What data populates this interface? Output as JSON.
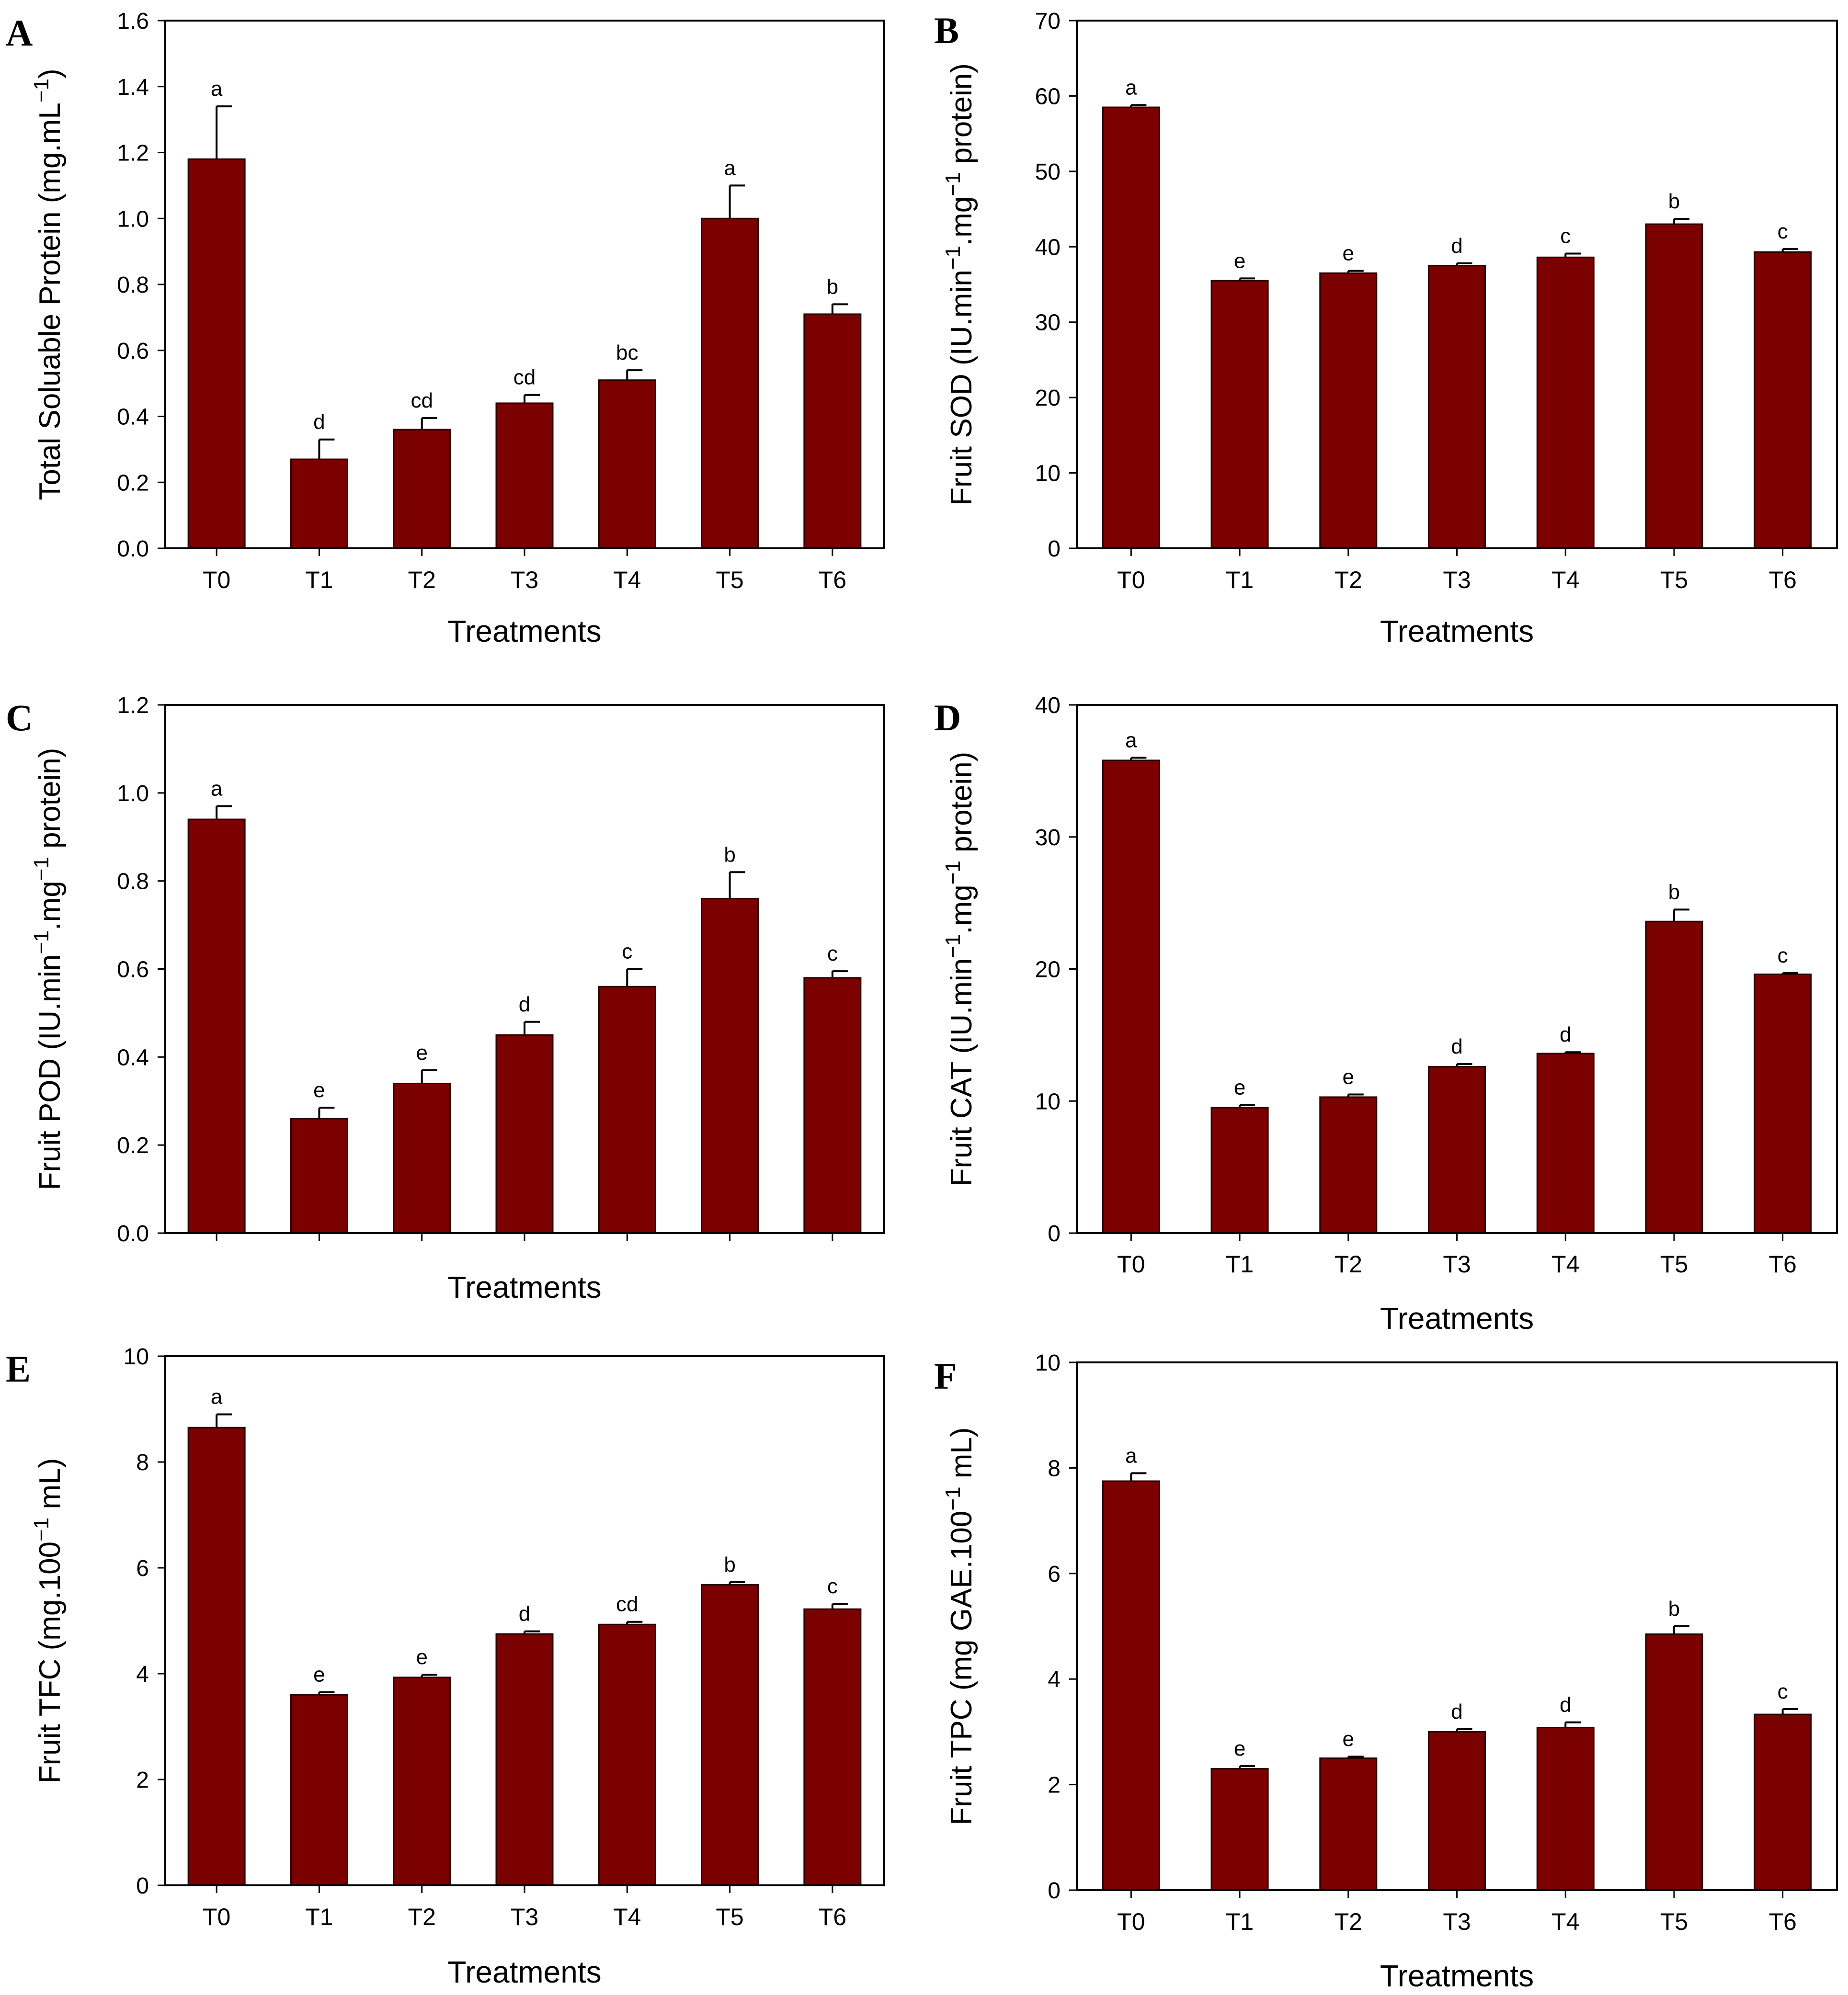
{
  "figure": {
    "colors": {
      "bar": "#7B0000",
      "bar_edge": "#2a0000",
      "axis": "#000000",
      "background": "#ffffff"
    }
  },
  "chart_data": [
    {
      "panel": "A",
      "type": "bar",
      "title": "",
      "xlabel": "Treatments",
      "ylabel": "Total Soluable Protein (mg.mL",
      "ylabel_sup": "−1",
      "ylabel_end": ")",
      "ylim": [
        0,
        1.6
      ],
      "yticks": [
        "0.0",
        "0.2",
        "0.4",
        "0.6",
        "0.8",
        "1.0",
        "1.2",
        "1.4",
        "1.6"
      ],
      "categories": [
        "T0",
        "T1",
        "T2",
        "T3",
        "T4",
        "T5",
        "T6"
      ],
      "values": [
        1.18,
        0.27,
        0.36,
        0.44,
        0.51,
        1.0,
        0.71
      ],
      "errors": [
        0.16,
        0.06,
        0.035,
        0.025,
        0.03,
        0.1,
        0.03
      ],
      "letters": [
        "a",
        "d",
        "cd",
        "cd",
        "bc",
        "a",
        "b"
      ]
    },
    {
      "panel": "B",
      "type": "bar",
      "title": "",
      "xlabel": "Treatments",
      "ylabel": "Fruit SOD (IU.min",
      "ylabel_sup": "−1",
      "ylabel_mid": ".mg",
      "ylabel_sup2": "−1",
      "ylabel_end": " protein)",
      "ylim": [
        0,
        70
      ],
      "yticks": [
        "0",
        "10",
        "20",
        "30",
        "40",
        "50",
        "60",
        "70"
      ],
      "categories": [
        "T0",
        "T1",
        "T2",
        "T3",
        "T4",
        "T5",
        "T6"
      ],
      "values": [
        58.5,
        35.5,
        36.5,
        37.5,
        38.6,
        43.0,
        39.3
      ],
      "errors": [
        0.3,
        0.3,
        0.3,
        0.3,
        0.5,
        0.7,
        0.4
      ],
      "letters": [
        "a",
        "e",
        "e",
        "d",
        "c",
        "b",
        "c"
      ]
    },
    {
      "panel": "C",
      "type": "bar",
      "title": "",
      "xlabel": "Treatments",
      "ylabel": "Fruit POD (IU.min",
      "ylabel_sup": "−1",
      "ylabel_mid": ".mg",
      "ylabel_sup2": "−1",
      "ylabel_end": " protein)",
      "ylim": [
        0,
        1.2
      ],
      "yticks": [
        "0.0",
        "0.2",
        "0.4",
        "0.6",
        "0.8",
        "1.0",
        "1.2"
      ],
      "categories": [
        "T0",
        "T1",
        "T2",
        "T3",
        "T4",
        "T5",
        "T6"
      ],
      "values": [
        0.94,
        0.26,
        0.34,
        0.45,
        0.56,
        0.76,
        0.58
      ],
      "errors": [
        0.03,
        0.025,
        0.03,
        0.03,
        0.04,
        0.06,
        0.015
      ],
      "letters": [
        "a",
        "e",
        "e",
        "d",
        "c",
        "b",
        "c"
      ]
    },
    {
      "panel": "D",
      "type": "bar",
      "title": "",
      "xlabel": "Treatments",
      "ylabel": "Fruit CAT (IU.min",
      "ylabel_sup": "−1",
      "ylabel_mid": ".mg",
      "ylabel_sup2": "−1",
      "ylabel_end": " protein)",
      "ylim": [
        0,
        40
      ],
      "yticks": [
        "0",
        "10",
        "20",
        "30",
        "40"
      ],
      "categories": [
        "T0",
        "T1",
        "T2",
        "T3",
        "T4",
        "T5",
        "T6"
      ],
      "values": [
        35.8,
        9.5,
        10.3,
        12.6,
        13.6,
        23.6,
        19.6
      ],
      "errors": [
        0.2,
        0.2,
        0.2,
        0.2,
        0.1,
        0.9,
        0.1
      ],
      "letters": [
        "a",
        "e",
        "e",
        "d",
        "d",
        "b",
        "c"
      ]
    },
    {
      "panel": "E",
      "type": "bar",
      "title": "",
      "xlabel": "Treatments",
      "ylabel": "Fruit TFC (mg.100",
      "ylabel_sup": "−1",
      "ylabel_end": " mL)",
      "ylim": [
        0,
        10
      ],
      "yticks": [
        "0",
        "2",
        "4",
        "6",
        "8",
        "10"
      ],
      "categories": [
        "T0",
        "T1",
        "T2",
        "T3",
        "T4",
        "T5",
        "T6"
      ],
      "values": [
        8.65,
        3.6,
        3.93,
        4.75,
        4.93,
        5.68,
        5.22
      ],
      "errors": [
        0.25,
        0.05,
        0.05,
        0.05,
        0.05,
        0.05,
        0.1
      ],
      "letters": [
        "a",
        "e",
        "e",
        "d",
        "cd",
        "b",
        "c"
      ]
    },
    {
      "panel": "F",
      "type": "bar",
      "title": "",
      "xlabel": "Treatments",
      "ylabel": "Fruit TPC (mg GAE.100",
      "ylabel_sup": "−1",
      "ylabel_end": " mL)",
      "ylim": [
        0,
        10
      ],
      "yticks": [
        "0",
        "2",
        "4",
        "6",
        "8",
        "10"
      ],
      "categories": [
        "T0",
        "T1",
        "T2",
        "T3",
        "T4",
        "T5",
        "T6"
      ],
      "values": [
        7.75,
        2.3,
        2.5,
        3.0,
        3.08,
        4.85,
        3.33
      ],
      "errors": [
        0.15,
        0.05,
        0.03,
        0.05,
        0.1,
        0.15,
        0.1
      ],
      "letters": [
        "a",
        "e",
        "e",
        "d",
        "d",
        "b",
        "c"
      ]
    }
  ]
}
